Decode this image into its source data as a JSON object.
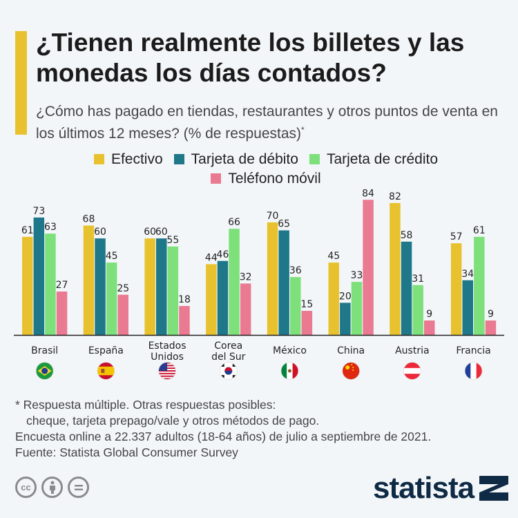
{
  "title": "¿Tienen realmente los billetes y las monedas los días contados?",
  "subtitle": "¿Cómo has pagado en tiendas, restaurantes y otros puntos de venta en los últimos 12 meses? (% de respuestas)",
  "subtitle_mark": "*",
  "chart_data": {
    "type": "bar",
    "categories": [
      [
        "Brasil"
      ],
      [
        "España"
      ],
      [
        "Estados",
        "Unidos"
      ],
      [
        "Corea",
        "del Sur"
      ],
      [
        "México"
      ],
      [
        "China"
      ],
      [
        "Austria"
      ],
      [
        "Francia"
      ]
    ],
    "flags": [
      "brazil-flag",
      "spain-flag",
      "usa-flag",
      "south-korea-flag",
      "mexico-flag",
      "china-flag",
      "austria-flag",
      "france-flag"
    ],
    "series": [
      {
        "name": "Efectivo",
        "color": "#e8c22e",
        "values": [
          61,
          68,
          60,
          44,
          70,
          45,
          82,
          57
        ]
      },
      {
        "name": "Tarjeta de débito",
        "color": "#1f778a",
        "values": [
          73,
          60,
          60,
          46,
          65,
          20,
          58,
          34
        ]
      },
      {
        "name": "Tarjeta de crédito",
        "color": "#7de07a",
        "values": [
          63,
          45,
          55,
          66,
          36,
          33,
          31,
          61
        ]
      },
      {
        "name": "Teléfono móvil",
        "color": "#e97a91",
        "values": [
          27,
          25,
          18,
          32,
          15,
          84,
          9,
          9
        ]
      }
    ],
    "ylim": [
      0,
      90
    ],
    "grid": false,
    "legend_placement": "top"
  },
  "notes": {
    "line1": "* Respuesta múltiple. Otras respuestas posibles:",
    "line2": "cheque, tarjeta prepago/vale y otros métodos de pago.",
    "line3": "Encuesta online a 22.337 adultos (18-64 años) de julio a septiembre de 2021.",
    "source": "Fuente: Statista Global Consumer Survey"
  },
  "license": {
    "cc": "cc"
  },
  "brand": "statista"
}
